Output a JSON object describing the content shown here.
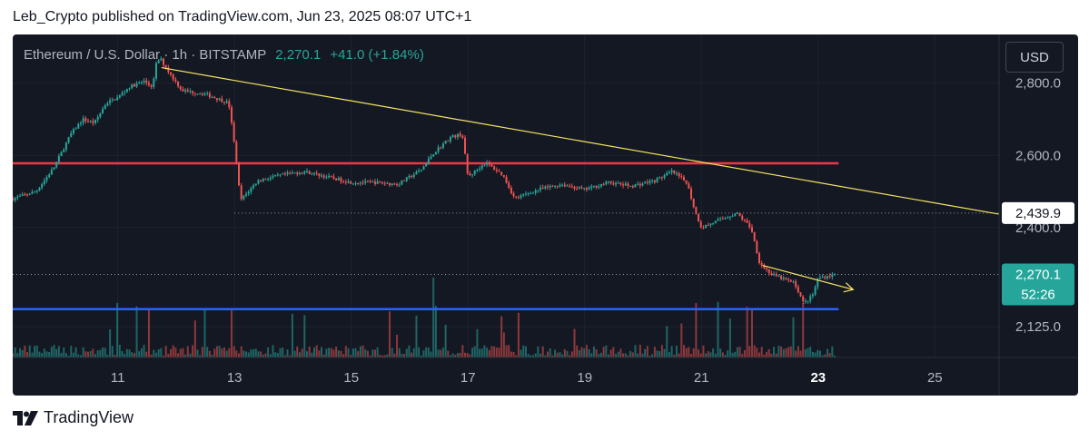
{
  "publisher_line": "Leb_Crypto published on TradingView.com, Jun 23, 2025 08:07 UTC+1",
  "symbol": {
    "name": "Ethereum / U.S. Dollar · 1h · BITSTAMP",
    "price": "2,270.1",
    "change": "+41.0 (+1.84%)"
  },
  "currency_button": "USD",
  "brand": "TradingView",
  "colors": {
    "background": "#141823",
    "up": "#26a69a",
    "down": "#ef5350",
    "resistance": "#f23645",
    "support": "#2962ff",
    "trendline": "#f5e663"
  },
  "chart_data": {
    "type": "candlestick",
    "interval": "1h",
    "x_ticks": [
      "11",
      "13",
      "15",
      "17",
      "19",
      "21",
      "23",
      "25"
    ],
    "x_tick_days": [
      11,
      13,
      15,
      17,
      19,
      21,
      23,
      25
    ],
    "highlight_tick": "23",
    "x_range_days": [
      9.2,
      26.1
    ],
    "y_range": [
      2040,
      2935
    ],
    "y_ticks": [
      "2,800.0",
      "2,600.0",
      "2,400.0",
      "2,125.0"
    ],
    "y_tick_values": [
      2800,
      2600,
      2400,
      2125
    ],
    "price_line": {
      "value": 2270.1,
      "label": "2,270.1",
      "countdown": "52:26"
    },
    "level_label": {
      "value": 2439.9,
      "label": "2,439.9"
    },
    "price_path": [
      [
        9.2,
        2480
      ],
      [
        9.6,
        2500
      ],
      [
        9.9,
        2565
      ],
      [
        10.2,
        2660
      ],
      [
        10.4,
        2700
      ],
      [
        10.6,
        2690
      ],
      [
        10.8,
        2745
      ],
      [
        11.0,
        2760
      ],
      [
        11.2,
        2790
      ],
      [
        11.45,
        2805
      ],
      [
        11.6,
        2790
      ],
      [
        11.65,
        2850
      ],
      [
        11.72,
        2870
      ],
      [
        11.9,
        2825
      ],
      [
        12.1,
        2780
      ],
      [
        12.5,
        2770
      ],
      [
        12.9,
        2745
      ],
      [
        13.0,
        2630
      ],
      [
        13.1,
        2475
      ],
      [
        13.4,
        2530
      ],
      [
        13.8,
        2545
      ],
      [
        14.2,
        2555
      ],
      [
        14.6,
        2540
      ],
      [
        15.0,
        2525
      ],
      [
        15.4,
        2525
      ],
      [
        15.8,
        2520
      ],
      [
        16.2,
        2560
      ],
      [
        16.4,
        2605
      ],
      [
        16.7,
        2650
      ],
      [
        16.9,
        2660
      ],
      [
        17.0,
        2540
      ],
      [
        17.3,
        2580
      ],
      [
        17.6,
        2545
      ],
      [
        17.8,
        2480
      ],
      [
        18.2,
        2505
      ],
      [
        18.6,
        2520
      ],
      [
        19.0,
        2505
      ],
      [
        19.4,
        2525
      ],
      [
        19.8,
        2515
      ],
      [
        20.2,
        2530
      ],
      [
        20.5,
        2555
      ],
      [
        20.75,
        2525
      ],
      [
        20.9,
        2440
      ],
      [
        21.0,
        2400
      ],
      [
        21.3,
        2420
      ],
      [
        21.6,
        2440
      ],
      [
        21.85,
        2400
      ],
      [
        22.0,
        2300
      ],
      [
        22.2,
        2270
      ],
      [
        22.45,
        2255
      ],
      [
        22.6,
        2245
      ],
      [
        22.75,
        2190
      ],
      [
        22.9,
        2210
      ],
      [
        23.0,
        2260
      ],
      [
        23.3,
        2270.1
      ]
    ],
    "overlays": [
      {
        "kind": "resistance",
        "value": 2578,
        "from_day": 9.2,
        "to_day": 23.35
      },
      {
        "kind": "support",
        "value": 2174,
        "from_day": 9.2,
        "to_day": 23.35
      },
      {
        "kind": "dotted_level",
        "value": 2439.9,
        "from_day": 13.0,
        "to_day": 26.1
      },
      {
        "kind": "dotted_level",
        "value": 2270.1,
        "from_day": 9.2,
        "to_day": 26.1
      },
      {
        "kind": "trendline",
        "from": [
          11.75,
          2843
        ],
        "to": [
          26.1,
          2437
        ]
      },
      {
        "kind": "trendline_arrow",
        "from": [
          22.05,
          2295
        ],
        "to": [
          23.6,
          2228
        ]
      }
    ]
  }
}
